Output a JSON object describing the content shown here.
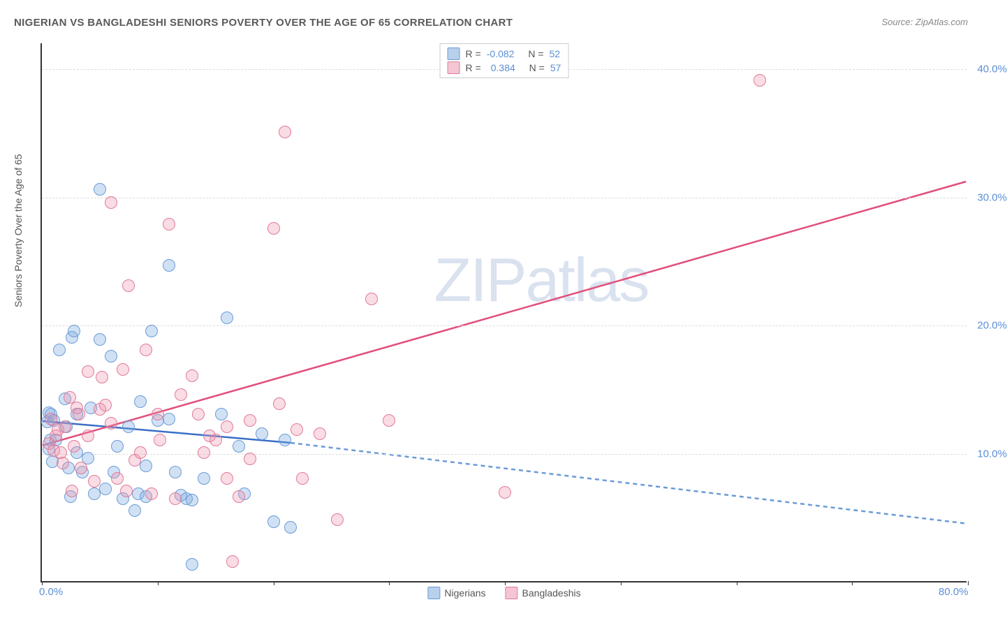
{
  "title": "NIGERIAN VS BANGLADESHI SENIORS POVERTY OVER THE AGE OF 65 CORRELATION CHART",
  "source": "Source: ZipAtlas.com",
  "ylabel": "Seniors Poverty Over the Age of 65",
  "watermark": "ZIPatlas",
  "chart": {
    "type": "scatter",
    "xlim": [
      0,
      80
    ],
    "ylim": [
      0,
      42
    ],
    "x_ticks": [
      0,
      10,
      20,
      30,
      40,
      50,
      60,
      70,
      80
    ],
    "y_gridlines": [
      10,
      20,
      30,
      40
    ],
    "x_labels": [
      {
        "v": 0,
        "t": "0.0%"
      },
      {
        "v": 80,
        "t": "80.0%"
      }
    ],
    "y_labels": [
      {
        "v": 10,
        "t": "10.0%"
      },
      {
        "v": 20,
        "t": "20.0%"
      },
      {
        "v": 30,
        "t": "30.0%"
      },
      {
        "v": 40,
        "t": "40.0%"
      }
    ],
    "background_color": "#ffffff",
    "grid_color": "#dddddd",
    "series": [
      {
        "name": "Nigerians",
        "color_fill": "rgba(122,168,224,0.35)",
        "color_stroke": "#6a9bd8",
        "swatch_fill": "#b8d0ec",
        "swatch_border": "#6a9bd8",
        "R": "-0.082",
        "N": "52",
        "regression": {
          "x1": 0,
          "y1": 12.5,
          "x2": 21.5,
          "y2": 10.8,
          "x2_ext": 80,
          "y2_ext": 4.5
        },
        "marker_radius": 9,
        "points": [
          [
            0.5,
            12.4
          ],
          [
            0.6,
            13.1
          ],
          [
            0.8,
            13.0
          ],
          [
            0.7,
            11.0
          ],
          [
            0.6,
            10.3
          ],
          [
            0.9,
            9.3
          ],
          [
            1.0,
            12.5
          ],
          [
            1.2,
            11.0
          ],
          [
            1.5,
            18.0
          ],
          [
            2.0,
            14.2
          ],
          [
            2.1,
            12.0
          ],
          [
            2.3,
            8.8
          ],
          [
            2.5,
            6.6
          ],
          [
            2.6,
            19.0
          ],
          [
            2.8,
            19.5
          ],
          [
            3.0,
            10.0
          ],
          [
            3.0,
            13.0
          ],
          [
            3.5,
            8.5
          ],
          [
            4.0,
            9.6
          ],
          [
            4.2,
            13.5
          ],
          [
            4.5,
            6.8
          ],
          [
            5.0,
            18.8
          ],
          [
            5.0,
            30.5
          ],
          [
            5.5,
            7.2
          ],
          [
            6.0,
            17.5
          ],
          [
            6.2,
            8.5
          ],
          [
            6.5,
            10.5
          ],
          [
            7.0,
            6.4
          ],
          [
            7.5,
            12.0
          ],
          [
            8.0,
            5.5
          ],
          [
            8.3,
            6.8
          ],
          [
            8.5,
            14.0
          ],
          [
            9.0,
            9.0
          ],
          [
            9.0,
            6.6
          ],
          [
            9.5,
            19.5
          ],
          [
            10.0,
            12.5
          ],
          [
            11.0,
            12.6
          ],
          [
            11.0,
            24.6
          ],
          [
            11.5,
            8.5
          ],
          [
            12.0,
            6.7
          ],
          [
            12.5,
            6.4
          ],
          [
            13.0,
            6.3
          ],
          [
            13.0,
            1.3
          ],
          [
            14.0,
            8.0
          ],
          [
            15.5,
            13.0
          ],
          [
            16.0,
            20.5
          ],
          [
            17.0,
            10.5
          ],
          [
            17.5,
            6.8
          ],
          [
            19.0,
            11.5
          ],
          [
            20.0,
            4.6
          ],
          [
            21.0,
            11.0
          ],
          [
            21.5,
            4.2
          ]
        ]
      },
      {
        "name": "Bangladeshis",
        "color_fill": "rgba(236,145,170,0.32)",
        "color_stroke": "#e17a9a",
        "swatch_fill": "#f4c5d2",
        "swatch_border": "#e17a9a",
        "R": "0.384",
        "N": "57",
        "regression": {
          "x1": 0,
          "y1": 10.6,
          "x2": 80,
          "y2": 31.2
        },
        "marker_radius": 9,
        "points": [
          [
            0.6,
            10.7
          ],
          [
            0.8,
            12.6
          ],
          [
            1.0,
            10.2
          ],
          [
            1.2,
            11.3
          ],
          [
            1.4,
            11.8
          ],
          [
            1.6,
            10.0
          ],
          [
            1.8,
            9.2
          ],
          [
            2.0,
            12.0
          ],
          [
            2.4,
            14.3
          ],
          [
            2.6,
            7.0
          ],
          [
            2.8,
            10.5
          ],
          [
            3.0,
            13.5
          ],
          [
            3.2,
            13.0
          ],
          [
            3.4,
            8.8
          ],
          [
            4.0,
            16.3
          ],
          [
            4.0,
            11.3
          ],
          [
            4.5,
            7.8
          ],
          [
            5.0,
            13.4
          ],
          [
            5.2,
            15.9
          ],
          [
            5.5,
            13.7
          ],
          [
            6.0,
            12.3
          ],
          [
            6.0,
            29.5
          ],
          [
            6.5,
            8.0
          ],
          [
            7.0,
            16.5
          ],
          [
            7.3,
            7.0
          ],
          [
            7.5,
            23.0
          ],
          [
            8.0,
            9.4
          ],
          [
            8.5,
            10.0
          ],
          [
            9.0,
            18.0
          ],
          [
            9.5,
            6.8
          ],
          [
            10.0,
            13.0
          ],
          [
            10.2,
            11.0
          ],
          [
            11.0,
            27.8
          ],
          [
            11.5,
            6.4
          ],
          [
            12.0,
            14.5
          ],
          [
            13.0,
            16.0
          ],
          [
            13.5,
            13.0
          ],
          [
            14.0,
            10.0
          ],
          [
            14.5,
            11.3
          ],
          [
            15.0,
            11.0
          ],
          [
            16.0,
            8.0
          ],
          [
            16.0,
            12.0
          ],
          [
            17.0,
            6.6
          ],
          [
            18.0,
            9.5
          ],
          [
            18.0,
            12.5
          ],
          [
            20.0,
            27.5
          ],
          [
            20.5,
            13.8
          ],
          [
            21.0,
            35.0
          ],
          [
            22.0,
            11.8
          ],
          [
            22.5,
            8.0
          ],
          [
            24.0,
            11.5
          ],
          [
            25.5,
            4.8
          ],
          [
            16.5,
            1.5
          ],
          [
            28.5,
            22.0
          ],
          [
            30.0,
            12.5
          ],
          [
            40.0,
            6.9
          ],
          [
            62.0,
            39.0
          ]
        ]
      }
    ],
    "legend_top_labels": {
      "R": "R =",
      "N": "N ="
    },
    "legend_bottom": [
      "Nigerians",
      "Bangladeshis"
    ]
  }
}
